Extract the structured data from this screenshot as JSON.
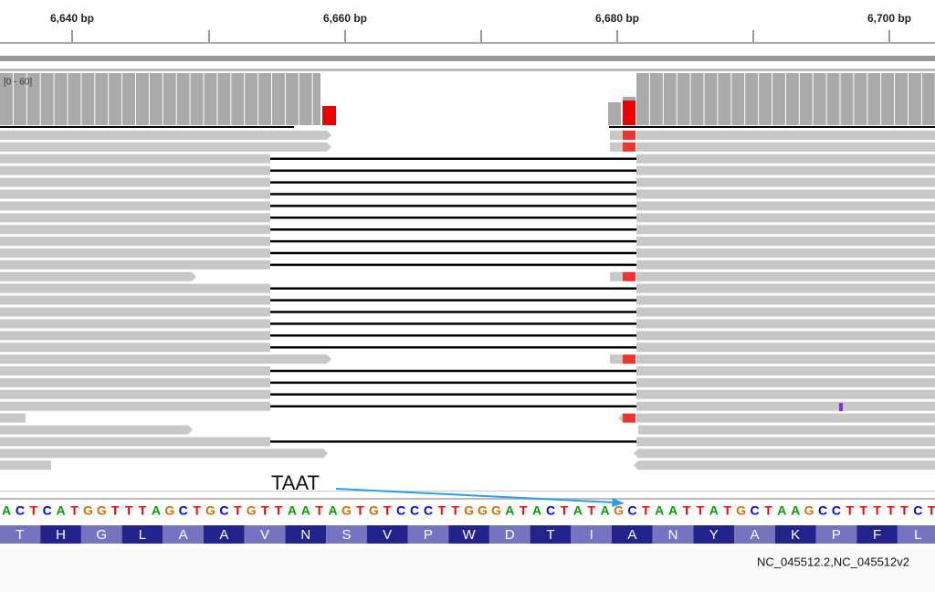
{
  "ruler": {
    "labels": [
      "6,640 bp",
      "6,660 bp",
      "6,680 bp",
      "6,700 bp"
    ]
  },
  "coverage": {
    "range": "[0 - 60]"
  },
  "annotation": {
    "text": "TAAT"
  },
  "sequence": {
    "bases": [
      "A",
      "C",
      "T",
      "C",
      "A",
      "T",
      "G",
      "G",
      "T",
      "T",
      "T",
      "A",
      "G",
      "C",
      "T",
      "G",
      "C",
      "T",
      "G",
      "T",
      "T",
      "A",
      "A",
      "T",
      "A",
      "G",
      "T",
      "G",
      "T",
      "C",
      "C",
      "C",
      "T",
      "T",
      "G",
      "G",
      "G",
      "A",
      "T",
      "A",
      "C",
      "T",
      "A",
      "T",
      "A",
      "G",
      "C",
      "T",
      "A",
      "A",
      "T",
      "T",
      "A",
      "T",
      "G",
      "C",
      "T",
      "A",
      "A",
      "G",
      "C",
      "C",
      "T",
      "T",
      "T",
      "T",
      "T",
      "C",
      "T",
      "T"
    ]
  },
  "translation": {
    "amino_acids": [
      "T",
      "H",
      "G",
      "L",
      "A",
      "A",
      "V",
      "N",
      "S",
      "V",
      "P",
      "W",
      "D",
      "T",
      "I",
      "A",
      "N",
      "Y",
      "A",
      "K",
      "P",
      "F",
      "L"
    ]
  },
  "footer": {
    "label": "NC_045512.2,NC_045512v2"
  }
}
